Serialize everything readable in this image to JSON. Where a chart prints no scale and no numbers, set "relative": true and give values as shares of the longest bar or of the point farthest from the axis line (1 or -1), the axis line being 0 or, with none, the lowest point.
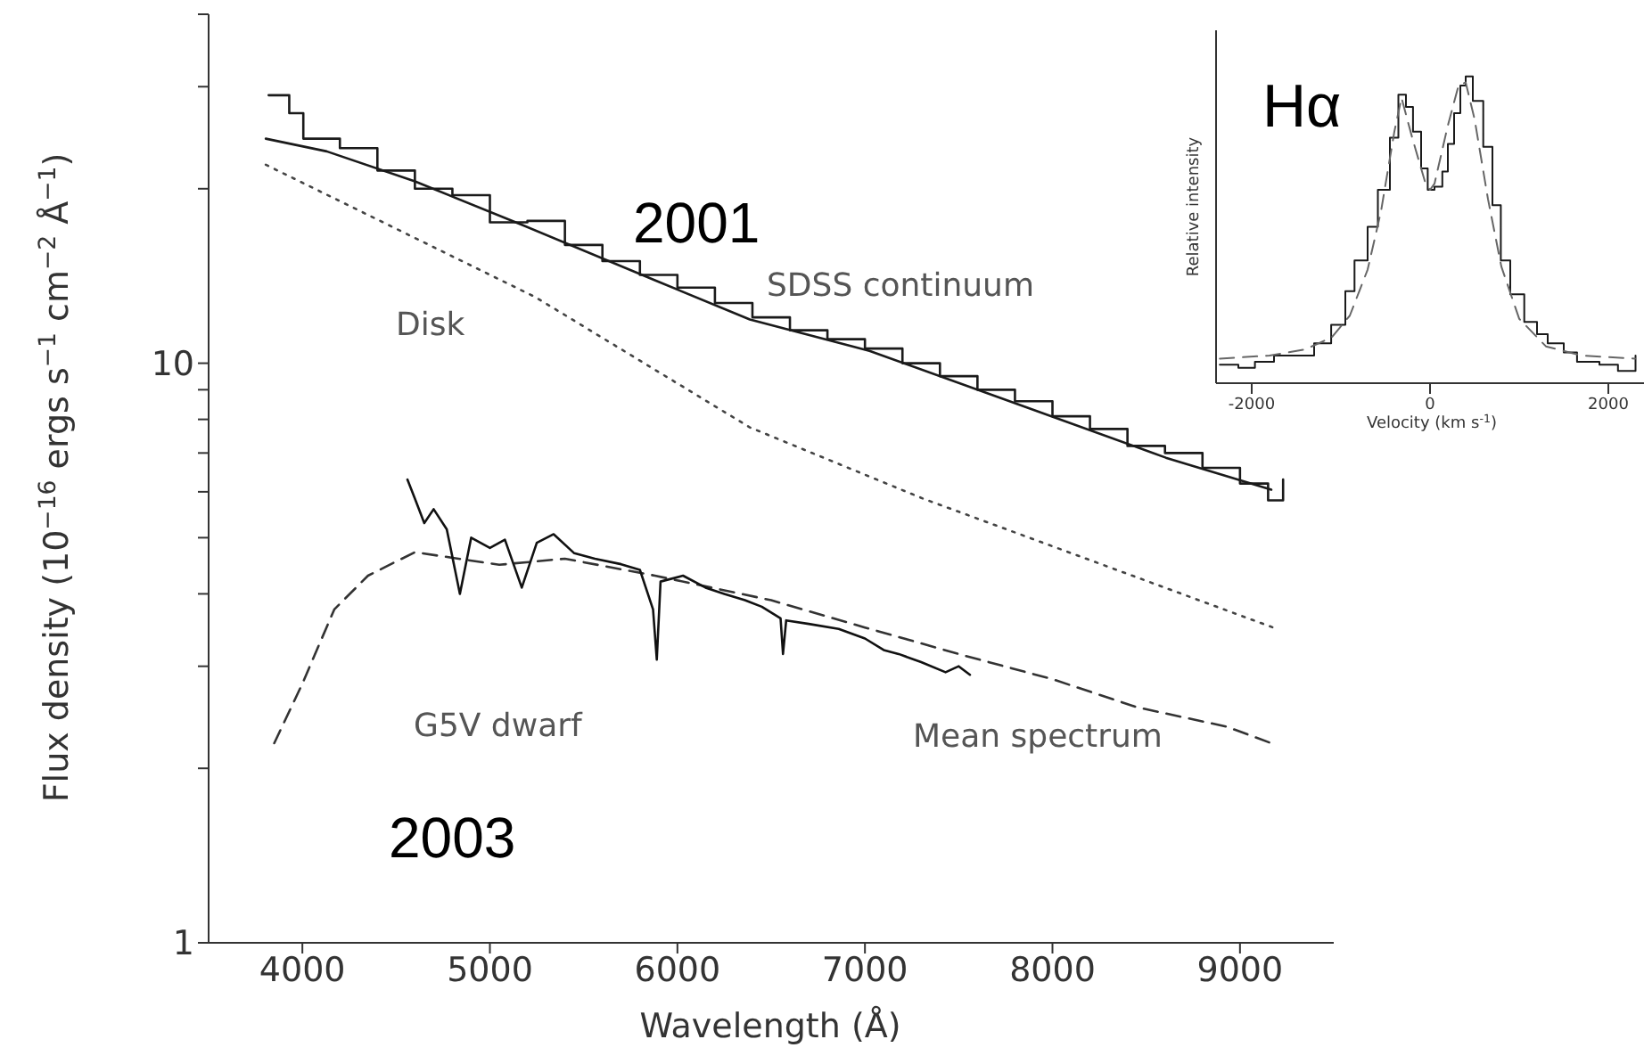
{
  "chart_data": [
    {
      "type": "line",
      "xlabel": "Wavelength (Å)",
      "ylabel": "Flux density (10$^{−16}$ ergs s$^{−1}$ cm$^{−2}$ Å$^{−1}$)",
      "log": "y",
      "xlim": [
        3500,
        9500
      ],
      "xticks": [
        4000,
        5000,
        6000,
        7000,
        8000,
        9000
      ],
      "ylim": [
        1,
        40
      ],
      "yticks": [
        1,
        {
          "value": 2,
          "label": null
        },
        {
          "value": 3,
          "label": null
        },
        {
          "value": 4,
          "label": null
        },
        {
          "value": 5,
          "label": null
        },
        {
          "value": 6,
          "label": null
        },
        {
          "value": 7,
          "label": null
        },
        {
          "value": 8,
          "label": null
        },
        {
          "value": 9,
          "label": null
        },
        10,
        {
          "value": 20,
          "label": null
        },
        {
          "value": 30,
          "label": null
        },
        {
          "value": 40,
          "label": null
        }
      ],
      "marker": "none",
      "series": [
        {
          "type": "line",
          "color": "#1a1a1a",
          "line_style": "solid",
          "x": [
            3805,
            4130,
            4600,
            5176,
            5880,
            6386,
            7024,
            7814,
            8605,
            9167
          ],
          "values": [
            24.4,
            23.2,
            20.6,
            17.3,
            13.9,
            11.9,
            10.5,
            8.5,
            6.87,
            6.05
          ]
        },
        {
          "type": "line",
          "color": "#444444",
          "line_style": "dotted",
          "x": [
            3805,
            5243,
            6386,
            7310,
            9176
          ],
          "values": [
            22,
            13,
            7.75,
            5.84,
            3.5
          ]
        },
        {
          "type": "line",
          "color": "#333333",
          "line_style": "dashed",
          "x": [
            3850,
            4000,
            4170,
            4350,
            4600,
            5050,
            5400,
            5880,
            6500,
            7000,
            7530,
            8000,
            8450,
            8930,
            9167
          ],
          "values": [
            2.21,
            2.8,
            3.76,
            4.3,
            4.72,
            4.49,
            4.6,
            4.3,
            3.9,
            3.5,
            3.13,
            2.85,
            2.55,
            2.36,
            2.21
          ]
        },
        {
          "type": "step",
          "color": "#1a1a1a",
          "line_style": "solid",
          "x": [
            3820,
            3930,
            4005,
            4200,
            4400,
            4600,
            4800,
            5000,
            5200,
            5400,
            5600,
            5800,
            6000,
            6200,
            6400,
            6600,
            6800,
            7000,
            7200,
            7400,
            7600,
            7800,
            8000,
            8200,
            8400,
            8600,
            8800,
            9000,
            9150,
            9230
          ],
          "values": [
            29,
            27,
            24.4,
            23.5,
            21.5,
            20,
            19.5,
            17.5,
            17.6,
            16,
            15,
            14.2,
            13.5,
            12.7,
            12,
            11.4,
            11,
            10.6,
            10,
            9.5,
            9,
            8.6,
            8.1,
            7.7,
            7.2,
            7,
            6.6,
            6.2,
            5.8,
            6.3
          ]
        },
        {
          "type": "line",
          "color": "#111111",
          "line_style": "solid",
          "x": [
            4560,
            4600,
            4650,
            4700,
            4770,
            4840,
            4900,
            5000,
            5080,
            5170,
            5250,
            5340,
            5450,
            5560,
            5700,
            5800,
            5870,
            5890,
            5910,
            6030,
            6150,
            6250,
            6360,
            6450,
            6550,
            6563,
            6580,
            6700,
            6860,
            7000,
            7100,
            7180,
            7300,
            7430,
            7500,
            7560
          ],
          "values": [
            6.3,
            5.84,
            5.3,
            5.6,
            5.17,
            4.0,
            5.0,
            4.8,
            4.96,
            4.1,
            4.9,
            5.07,
            4.7,
            4.6,
            4.5,
            4.4,
            3.76,
            3.08,
            4.2,
            4.3,
            4.1,
            4.0,
            3.9,
            3.8,
            3.63,
            3.15,
            3.6,
            3.55,
            3.48,
            3.35,
            3.2,
            3.15,
            3.05,
            2.93,
            3.0,
            2.9
          ]
        }
      ],
      "annotations": [
        "2001",
        "SDSS continuum",
        "Disk",
        "G5V dwarf",
        "Mean spectrum",
        "2003"
      ]
    },
    {
      "type": "line",
      "relative": true,
      "xlabel": "Velocity (km s$^{-1}$)",
      "ylabel": "Relative intensity",
      "xlim": [
        -2400,
        2400
      ],
      "xticks": [
        -2000,
        0,
        2000
      ],
      "marker": "none",
      "series": [
        {
          "type": "step",
          "color": "#1a1a1a",
          "line_style": "solid",
          "x": [
            -2358,
            -2150,
            -1964,
            -1750,
            -1503,
            -1300,
            -1109,
            -950,
            -847,
            -700,
            -585,
            -450,
            -355,
            -270,
            -191,
            -100,
            -26,
            50,
            138,
            200,
            270,
            340,
            400,
            480,
            597,
            700,
            794,
            900,
            1057,
            1200,
            1320,
            1500,
            1649,
            1900,
            2108,
            2305
          ],
          "values": [
            0.06,
            0.05,
            0.07,
            0.09,
            0.09,
            0.13,
            0.19,
            0.3,
            0.4,
            0.51,
            0.63,
            0.8,
            0.94,
            0.9,
            0.82,
            0.7,
            0.63,
            0.64,
            0.69,
            0.78,
            0.88,
            0.97,
            1.0,
            0.92,
            0.77,
            0.58,
            0.4,
            0.29,
            0.2,
            0.16,
            0.13,
            0.1,
            0.07,
            0.06,
            0.04,
            0.09
          ]
        },
        {
          "type": "line",
          "color": "#666666",
          "line_style": "dashed",
          "x": [
            -2358,
            -1800,
            -1400,
            -1100,
            -900,
            -700,
            -550,
            -400,
            -320,
            -200,
            -50,
            0,
            50,
            200,
            320,
            400,
            500,
            650,
            800,
            1000,
            1300,
            1700,
            2300
          ],
          "values": [
            0.08,
            0.09,
            0.11,
            0.15,
            0.22,
            0.37,
            0.56,
            0.82,
            0.93,
            0.8,
            0.65,
            0.63,
            0.65,
            0.84,
            0.97,
            0.98,
            0.86,
            0.6,
            0.38,
            0.21,
            0.12,
            0.09,
            0.08
          ]
        }
      ],
      "annotations": [
        "Hα"
      ]
    }
  ]
}
